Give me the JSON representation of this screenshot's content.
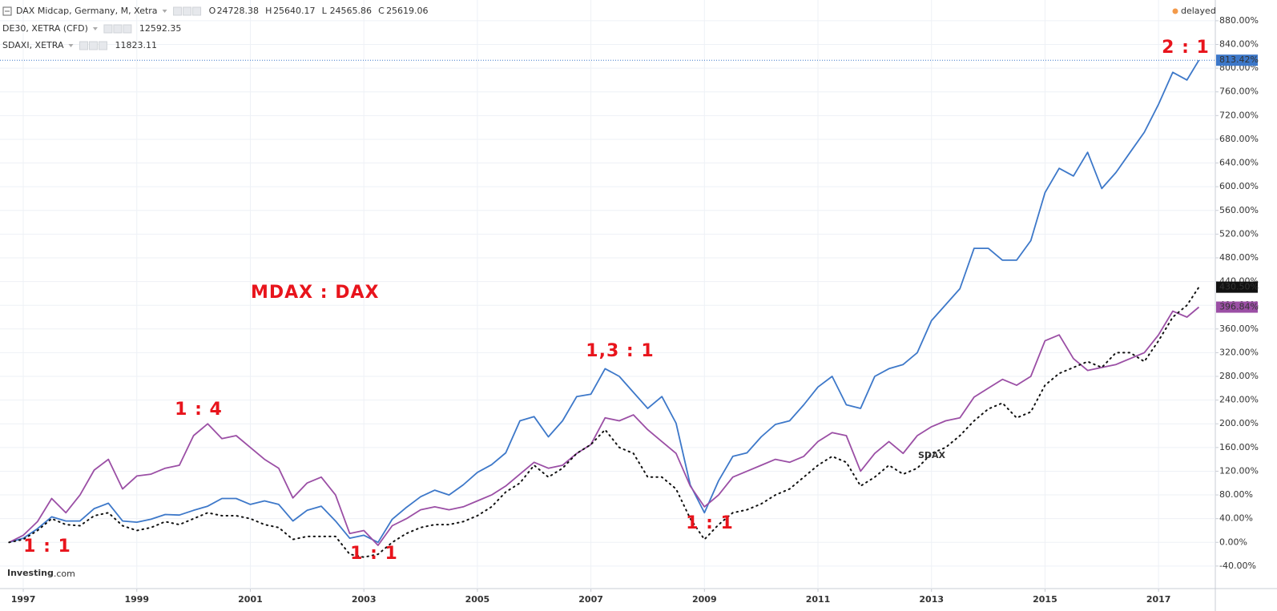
{
  "chart_data": {
    "type": "line",
    "header": {
      "ohlc": [
        {
          "key": "O",
          "value": 24728.38
        },
        {
          "key": "H",
          "value": 25640.17
        },
        {
          "key": "L",
          "value": 24565.86
        },
        {
          "key": "C",
          "value": 25619.06
        }
      ],
      "status": "delayed"
    },
    "logo": {
      "brand": "Investing",
      "suffix": ".com"
    },
    "annotations": [
      "MDAX : DAX",
      "1 : 1",
      "1 : 4",
      "1 : 1",
      "1,3 : 1",
      "1 : 1",
      "2 : 1",
      "SDAX"
    ],
    "x": [
      1996.75,
      1997,
      1997.25,
      1997.5,
      1997.75,
      1998,
      1998.25,
      1998.5,
      1998.75,
      1999,
      1999.25,
      1999.5,
      1999.75,
      2000,
      2000.25,
      2000.5,
      2000.75,
      2001,
      2001.25,
      2001.5,
      2001.75,
      2002,
      2002.25,
      2002.5,
      2002.75,
      2003,
      2003.25,
      2003.5,
      2003.75,
      2004,
      2004.25,
      2004.5,
      2004.75,
      2005,
      2005.25,
      2005.5,
      2005.75,
      2006,
      2006.25,
      2006.5,
      2006.75,
      2007,
      2007.25,
      2007.5,
      2007.75,
      2008,
      2008.25,
      2008.5,
      2008.75,
      2009,
      2009.25,
      2009.5,
      2009.75,
      2010,
      2010.25,
      2010.5,
      2010.75,
      2011,
      2011.25,
      2011.5,
      2011.75,
      2012,
      2012.25,
      2012.5,
      2012.75,
      2013,
      2013.25,
      2013.5,
      2013.75,
      2014,
      2014.25,
      2014.5,
      2014.75,
      2015,
      2015.25,
      2015.5,
      2015.75,
      2016,
      2016.25,
      2016.5,
      2016.75,
      2017,
      2017.25,
      2017.5,
      2017.71
    ],
    "series": [
      {
        "name": "DAX Midcap, Germany, M, Xetra",
        "color": "#3d78c9",
        "style": "solid",
        "last_label": "813.42%",
        "values": [
          0,
          7,
          23,
          43,
          36,
          36,
          57,
          66,
          36,
          34,
          39,
          47,
          46,
          54,
          61,
          74,
          74,
          64,
          70,
          64,
          36,
          54,
          61,
          36,
          7,
          12,
          0,
          39,
          59,
          77,
          88,
          80,
          97,
          118,
          131,
          151,
          205,
          212,
          178,
          205,
          246,
          250,
          293,
          280,
          253,
          226,
          246,
          201,
          97,
          50,
          104,
          145,
          151,
          178,
          199,
          205,
          232,
          262,
          280,
          232,
          226,
          280,
          293,
          300,
          320,
          374,
          401,
          428,
          496,
          496,
          476,
          476,
          509,
          590,
          631,
          618,
          658,
          597,
          624,
          658,
          692,
          739,
          793,
          780,
          813.42
        ]
      },
      {
        "name": "DE30, XETRA (CFD)",
        "color": "#9b4fa5",
        "style": "solid",
        "last_label": "396.84%",
        "last_value": 12592.35,
        "values": [
          0,
          12,
          35,
          74,
          50,
          80,
          122,
          140,
          90,
          112,
          115,
          125,
          130,
          180,
          200,
          175,
          180,
          160,
          140,
          125,
          75,
          100,
          110,
          80,
          15,
          20,
          -5,
          28,
          40,
          55,
          60,
          55,
          60,
          70,
          80,
          95,
          115,
          135,
          125,
          130,
          150,
          165,
          210,
          205,
          215,
          190,
          170,
          150,
          95,
          60,
          80,
          110,
          120,
          130,
          140,
          135,
          145,
          170,
          185,
          180,
          120,
          150,
          170,
          150,
          180,
          195,
          205,
          210,
          245,
          260,
          275,
          265,
          280,
          340,
          350,
          310,
          290,
          295,
          300,
          310,
          320,
          350,
          390,
          380,
          396.84
        ]
      },
      {
        "name": "SDAXI, XETRA",
        "color": "#111111",
        "style": "dotted",
        "last_label": "430.50%",
        "last_value": 11823.11,
        "values": [
          0,
          5,
          20,
          40,
          30,
          28,
          45,
          50,
          28,
          20,
          25,
          35,
          30,
          40,
          50,
          45,
          45,
          40,
          30,
          25,
          5,
          10,
          10,
          10,
          -20,
          -25,
          -20,
          0,
          15,
          25,
          30,
          30,
          35,
          45,
          60,
          85,
          100,
          130,
          110,
          125,
          150,
          165,
          190,
          160,
          150,
          110,
          110,
          90,
          40,
          5,
          30,
          50,
          55,
          65,
          80,
          90,
          110,
          130,
          145,
          135,
          95,
          110,
          130,
          115,
          125,
          150,
          160,
          180,
          205,
          225,
          235,
          210,
          220,
          265,
          285,
          295,
          305,
          295,
          320,
          320,
          305,
          340,
          380,
          400,
          430.5
        ]
      }
    ],
    "xlim": [
      1996.59,
      2018.0
    ],
    "xticks": [
      1997,
      1999,
      2001,
      2003,
      2005,
      2007,
      2009,
      2011,
      2013,
      2015,
      2017
    ],
    "ylim": [
      -78,
      915
    ],
    "yticks": [
      {
        "value": -40,
        "label": "-40.00%"
      },
      {
        "value": 0,
        "label": "0.00%"
      },
      {
        "value": 40,
        "label": "40.00%"
      },
      {
        "value": 80,
        "label": "80.00%"
      },
      {
        "value": 120,
        "label": "120.00%"
      },
      {
        "value": 160,
        "label": "160.00%"
      },
      {
        "value": 200,
        "label": "200.00%"
      },
      {
        "value": 240,
        "label": "240.00%"
      },
      {
        "value": 280,
        "label": "280.00%"
      },
      {
        "value": 320,
        "label": "320.00%"
      },
      {
        "value": 360,
        "label": "360.00%"
      },
      {
        "value": 400,
        "label": "400.00%"
      },
      {
        "value": 440,
        "label": "440.00%"
      },
      {
        "value": 480,
        "label": "480.00%"
      },
      {
        "value": 520,
        "label": "520.00%"
      },
      {
        "value": 560,
        "label": "560.00%"
      },
      {
        "value": 600,
        "label": "600.00%"
      },
      {
        "value": 640,
        "label": "640.00%"
      },
      {
        "value": 680,
        "label": "680.00%"
      },
      {
        "value": 720,
        "label": "720.00%"
      },
      {
        "value": 760,
        "label": "760.00%"
      },
      {
        "value": 800,
        "label": "800.00%"
      },
      {
        "value": 840,
        "label": "840.00%"
      },
      {
        "value": 880,
        "label": "880.00%"
      }
    ],
    "grid": true
  }
}
